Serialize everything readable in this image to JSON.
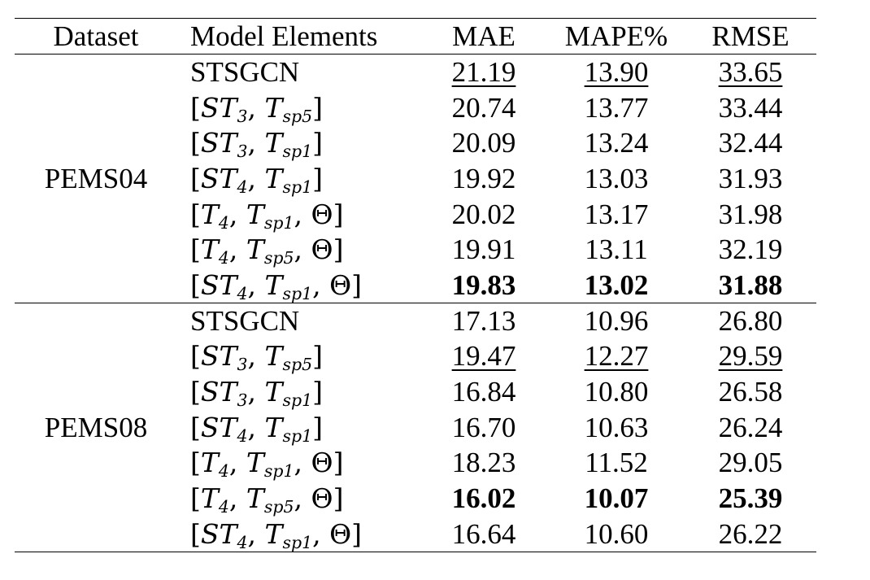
{
  "header": [
    "Dataset",
    "Model Elements",
    "MAE",
    "MAPE%",
    "RMSE"
  ],
  "groups": [
    {
      "dataset": "PEMS04",
      "rows": [
        {
          "model": "STSGCN",
          "mae": "21.19",
          "mape": "13.90",
          "rmse": "33.65",
          "style": "second"
        },
        {
          "model": "[ST_3, T_sp5]",
          "mae": "20.74",
          "mape": "13.77",
          "rmse": "33.44",
          "style": ""
        },
        {
          "model": "[ST_3, T_sp1]",
          "mae": "20.09",
          "mape": "13.24",
          "rmse": "32.44",
          "style": ""
        },
        {
          "model": "[ST_4, T_sp1]",
          "mae": "19.92",
          "mape": "13.03",
          "rmse": "31.93",
          "style": ""
        },
        {
          "model": "[T_4, T_sp1, Θ]",
          "mae": "20.02",
          "mape": "13.17",
          "rmse": "31.98",
          "style": ""
        },
        {
          "model": "[T_4, T_sp5, Θ]",
          "mae": "19.91",
          "mape": "13.11",
          "rmse": "32.19",
          "style": ""
        },
        {
          "model": "[ST_4, T_sp1, Θ]",
          "mae": "19.83",
          "mape": "13.02",
          "rmse": "31.88",
          "style": "best"
        }
      ]
    },
    {
      "dataset": "PEMS08",
      "rows": [
        {
          "model": "STSGCN",
          "mae": "17.13",
          "mape": "10.96",
          "rmse": "26.80",
          "style": ""
        },
        {
          "model": "[ST_3, T_sp5]",
          "mae": "19.47",
          "mape": "12.27",
          "rmse": "29.59",
          "style": "second"
        },
        {
          "model": "[ST_3, T_sp1]",
          "mae": "16.84",
          "mape": "10.80",
          "rmse": "26.58",
          "style": ""
        },
        {
          "model": "[ST_4, T_sp1]",
          "mae": "16.70",
          "mape": "10.63",
          "rmse": "26.24",
          "style": ""
        },
        {
          "model": "[T_4, T_sp1, Θ]",
          "mae": "18.23",
          "mape": "11.52",
          "rmse": "29.05",
          "style": ""
        },
        {
          "model": "[T_4, T_sp5, Θ]",
          "mae": "16.02",
          "mape": "10.07",
          "rmse": "25.39",
          "style": "best"
        },
        {
          "model": "[ST_4, T_sp1, Θ]",
          "mae": "16.64",
          "mape": "10.60",
          "rmse": "26.22",
          "style": ""
        }
      ]
    }
  ]
}
